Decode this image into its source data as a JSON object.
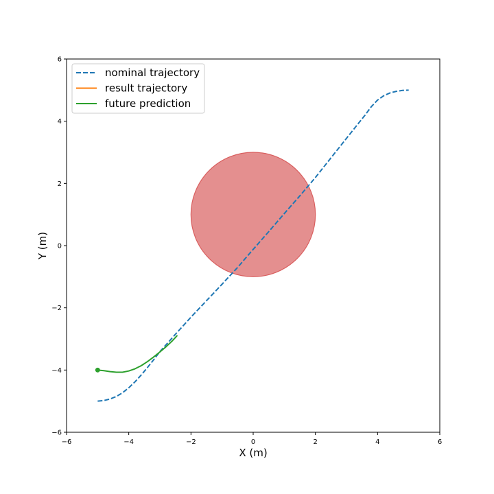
{
  "chart_data": {
    "type": "line",
    "title": "",
    "xlabel": "X (m)",
    "ylabel": "Y (m)",
    "xlim": [
      -6,
      6
    ],
    "ylim": [
      -6,
      6
    ],
    "xticks": [
      -6,
      -4,
      -2,
      0,
      2,
      4,
      6
    ],
    "yticks": [
      -6,
      -4,
      -2,
      0,
      2,
      4,
      6
    ],
    "xtick_labels": [
      "−6",
      "−4",
      "−2",
      "0",
      "2",
      "4",
      "6"
    ],
    "ytick_labels": [
      "−6",
      "−4",
      "−2",
      "0",
      "2",
      "4",
      "6"
    ],
    "grid": false,
    "legend_position": "top-left",
    "obstacle": {
      "center": [
        0,
        1
      ],
      "radius": 2,
      "color": "#d95f5f"
    },
    "series": [
      {
        "name": "nominal trajectory",
        "style": "dashed",
        "color": "#1f77b4",
        "x": [
          -5,
          -4.8,
          -4.6,
          -4.4,
          -4.2,
          -4.0,
          -3.8,
          -3.6,
          -3.4,
          -3.2,
          -3.0,
          -2.5,
          -2.0,
          -1.5,
          -1.0,
          -0.5,
          0.0,
          0.5,
          1.0,
          1.5,
          2.0,
          2.5,
          3.0,
          3.2,
          3.4,
          3.6,
          3.8,
          4.0,
          4.2,
          4.4,
          4.6,
          4.8,
          5.0
        ],
        "y": [
          -5.0,
          -4.98,
          -4.93,
          -4.85,
          -4.73,
          -4.57,
          -4.38,
          -4.16,
          -3.92,
          -3.67,
          -3.41,
          -2.85,
          -2.3,
          -1.77,
          -1.24,
          -0.7,
          -0.12,
          0.45,
          1.03,
          1.6,
          2.19,
          2.82,
          3.45,
          3.7,
          3.95,
          4.2,
          4.47,
          4.68,
          4.82,
          4.91,
          4.96,
          4.99,
          5.0
        ]
      },
      {
        "name": "result trajectory",
        "style": "solid",
        "color": "#ff7f0e",
        "x": [
          -5.0
        ],
        "y": [
          -4.0
        ]
      },
      {
        "name": "future prediction",
        "style": "solid",
        "color": "#2ca02c",
        "x": [
          -5.0,
          -4.8,
          -4.6,
          -4.4,
          -4.2,
          -4.0,
          -3.8,
          -3.6,
          -3.4,
          -3.2,
          -3.0,
          -2.8,
          -2.6,
          -2.45
        ],
        "y": [
          -4.0,
          -4.02,
          -4.05,
          -4.07,
          -4.07,
          -4.03,
          -3.96,
          -3.86,
          -3.73,
          -3.58,
          -3.42,
          -3.25,
          -3.06,
          -2.9
        ]
      }
    ],
    "markers": [
      {
        "name": "current-position",
        "x": -5.0,
        "y": -4.0,
        "color": "#2ca02c"
      }
    ]
  }
}
